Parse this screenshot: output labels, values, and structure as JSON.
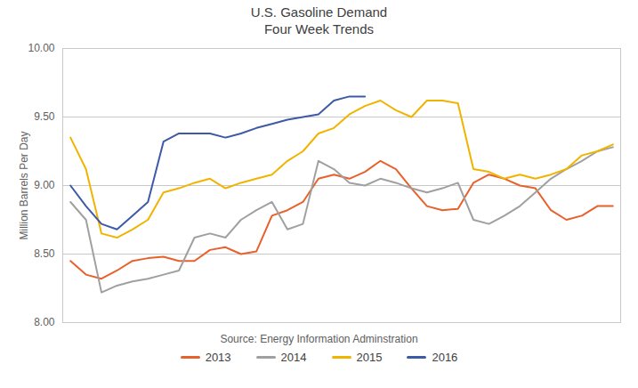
{
  "chart_data": {
    "type": "line",
    "title": "U.S. Gasoline Demand\nFour Week Trends",
    "ylabel": "Million Barrels Per Day",
    "annotations": [
      "Source: Energy Information Adminstration"
    ],
    "x": [
      0,
      1,
      2,
      3,
      4,
      5,
      6,
      7,
      8,
      9,
      10,
      11,
      12,
      13,
      14,
      15,
      16,
      17,
      18,
      19,
      20,
      21,
      22,
      23,
      24,
      25,
      26,
      27,
      28,
      29,
      30,
      31,
      32,
      33,
      34,
      35
    ],
    "xlim": [
      -0.5,
      35.5
    ],
    "ylim": [
      8.0,
      10.0
    ],
    "yticks": [
      {
        "value": 8.0,
        "label": "8.00"
      },
      {
        "value": 8.5,
        "label": "8.50"
      },
      {
        "value": 9.0,
        "label": "9.00"
      },
      {
        "value": 9.5,
        "label": "9.50"
      },
      {
        "value": 10.0,
        "label": "10.00"
      }
    ],
    "tick_labels": "y",
    "grid": true,
    "legend": "bottom",
    "series": [
      {
        "name": "2013",
        "color": "#E8612C",
        "values": [
          8.45,
          8.35,
          8.32,
          8.38,
          8.45,
          8.47,
          8.48,
          8.45,
          8.45,
          8.53,
          8.55,
          8.5,
          8.52,
          8.78,
          8.82,
          8.88,
          9.05,
          9.08,
          9.05,
          9.1,
          9.18,
          9.12,
          8.98,
          8.85,
          8.82,
          8.83,
          9.02,
          9.08,
          9.05,
          9.0,
          8.98,
          8.82,
          8.75,
          8.78,
          8.85,
          8.85
        ]
      },
      {
        "name": "2014",
        "color": "#A0A0A0",
        "values": [
          8.88,
          8.75,
          8.22,
          8.27,
          8.3,
          8.32,
          8.35,
          8.38,
          8.62,
          8.65,
          8.62,
          8.75,
          8.82,
          8.88,
          8.68,
          8.72,
          9.18,
          9.12,
          9.02,
          9.0,
          9.05,
          9.02,
          8.98,
          8.95,
          8.98,
          9.02,
          8.75,
          8.72,
          8.78,
          8.85,
          8.95,
          9.05,
          9.12,
          9.18,
          9.25,
          9.28
        ]
      },
      {
        "name": "2015",
        "color": "#F0B400",
        "values": [
          9.35,
          9.12,
          8.65,
          8.62,
          8.68,
          8.75,
          8.95,
          8.98,
          9.02,
          9.05,
          8.98,
          9.02,
          9.05,
          9.08,
          9.18,
          9.25,
          9.38,
          9.42,
          9.52,
          9.58,
          9.62,
          9.55,
          9.5,
          9.62,
          9.62,
          9.6,
          9.12,
          9.1,
          9.05,
          9.08,
          9.05,
          9.08,
          9.12,
          9.22,
          9.25,
          9.3
        ]
      },
      {
        "name": "2016",
        "color": "#3C5AA6",
        "values": [
          9.0,
          8.85,
          8.72,
          8.68,
          8.78,
          8.88,
          9.32,
          9.38,
          9.38,
          9.38,
          9.35,
          9.38,
          9.42,
          9.45,
          9.48,
          9.5,
          9.52,
          9.62,
          9.65,
          9.65,
          null,
          null,
          null,
          null,
          null,
          null,
          null,
          null,
          null,
          null,
          null,
          null,
          null,
          null,
          null,
          null
        ]
      }
    ]
  }
}
